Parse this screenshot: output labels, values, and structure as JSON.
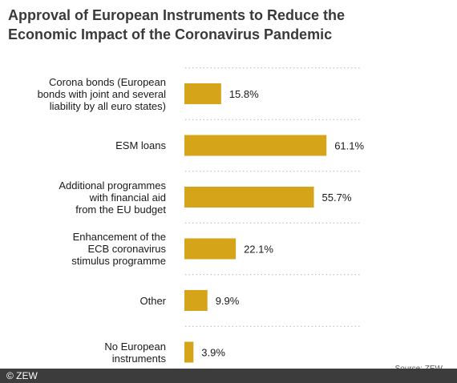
{
  "title": "Approval of European Instruments to Reduce the\nEconomic Impact of the Coronavirus Pandemic",
  "source": "Source: ZEW",
  "credit": "© ZEW",
  "colors": {
    "bar": "#d6a418",
    "grid": "#b5b5b5",
    "credit_bar": "#3c3c3c"
  },
  "chart_data": {
    "type": "bar",
    "orientation": "horizontal",
    "categories": [
      "Corona bonds (European\nbonds with joint and several\nliability by all euro states)",
      "ESM loans",
      "Additional programmes\nwith financial aid\nfrom the EU budget",
      "Enhancement of the\nECB coronavirus\nstimulus programme",
      "Other",
      "No European\ninstruments"
    ],
    "values": [
      15.8,
      61.1,
      55.7,
      22.1,
      9.9,
      3.9
    ],
    "value_labels": [
      "15.8%",
      "61.1%",
      "55.7%",
      "22.1%",
      "9.9%",
      "3.9%"
    ],
    "xlim": [
      0,
      100
    ],
    "grid": "dotted horizontal separators between categories",
    "legend": "none"
  }
}
